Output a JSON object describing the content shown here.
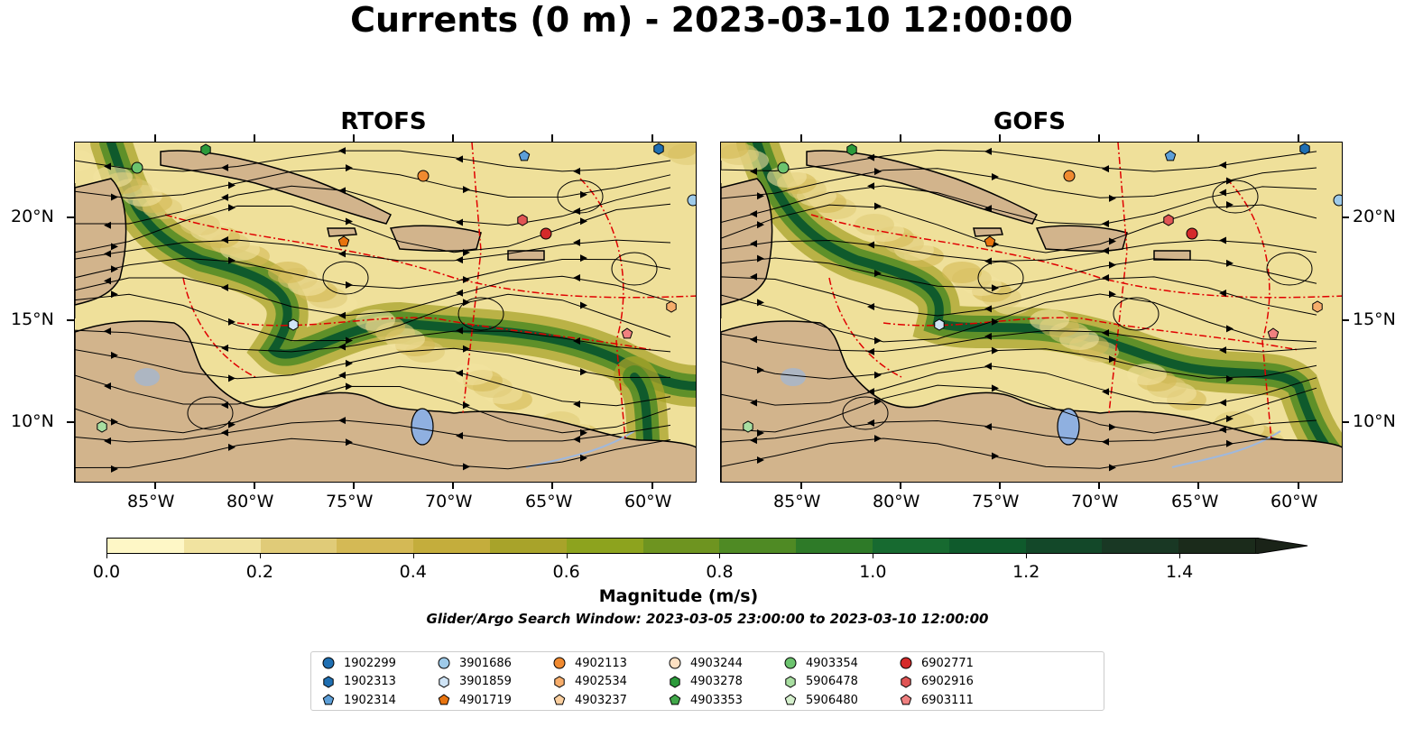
{
  "title": "Currents (0 m) - 2023-03-10 12:00:00",
  "panels": [
    {
      "title": "RTOFS"
    },
    {
      "title": "GOFS"
    }
  ],
  "x_ticks": [
    "85°W",
    "80°W",
    "75°W",
    "70°W",
    "65°W",
    "60°W"
  ],
  "y_ticks": [
    "20°N",
    "15°N",
    "10°N"
  ],
  "colorbar": {
    "label": "Magnitude (m/s)",
    "ticks": [
      "0.0",
      "0.2",
      "0.4",
      "0.6",
      "0.8",
      "1.0",
      "1.2",
      "1.4"
    ],
    "range": [
      0.0,
      1.5
    ],
    "extend": "max",
    "colors": [
      "#fef7c6",
      "#f1e3a0",
      "#e0cb78",
      "#d4b955",
      "#c4ad3c",
      "#a8a32a",
      "#8da31e",
      "#6e9420",
      "#4f8a24",
      "#2e7a28",
      "#176a30",
      "#0f5a2c",
      "#134829",
      "#193824",
      "#1b2b1b",
      "#1a2318"
    ]
  },
  "search_window": "Glider/Argo Search Window: 2023-03-05 23:00:00 to 2023-03-10 12:00:00",
  "legend": [
    {
      "id": "1902299",
      "marker": "circle",
      "color": "#1f6fb2"
    },
    {
      "id": "1902313",
      "marker": "hexagon",
      "color": "#1f6fb2"
    },
    {
      "id": "1902314",
      "marker": "pentagon",
      "color": "#5d9fd8"
    },
    {
      "id": "3901686",
      "marker": "circle",
      "color": "#9ecae9"
    },
    {
      "id": "3901859",
      "marker": "hexagon",
      "color": "#cfe4f6"
    },
    {
      "id": "4901719",
      "marker": "pentagon",
      "color": "#e8740f"
    },
    {
      "id": "4902113",
      "marker": "circle",
      "color": "#f08a30"
    },
    {
      "id": "4902534",
      "marker": "hexagon",
      "color": "#f7ad6b"
    },
    {
      "id": "4903237",
      "marker": "pentagon",
      "color": "#fbcf9f"
    },
    {
      "id": "4903244",
      "marker": "circle",
      "color": "#fde0c2"
    },
    {
      "id": "4903278",
      "marker": "hexagon",
      "color": "#2b9a3a"
    },
    {
      "id": "4903353",
      "marker": "pentagon",
      "color": "#41a84a"
    },
    {
      "id": "4903354",
      "marker": "circle",
      "color": "#6cc36e"
    },
    {
      "id": "5906478",
      "marker": "hexagon",
      "color": "#a8dea1"
    },
    {
      "id": "5906480",
      "marker": "pentagon",
      "color": "#d5f0cd"
    },
    {
      "id": "6902771",
      "marker": "circle",
      "color": "#d52a2a"
    },
    {
      "id": "6902916",
      "marker": "hexagon",
      "color": "#e05555"
    },
    {
      "id": "6903111",
      "marker": "pentagon",
      "color": "#f08080"
    }
  ],
  "map_colors": {
    "land": "#d2b48c",
    "water": "#8fb0e0",
    "ocean_base": "#efe09a",
    "contour": "#e00000"
  }
}
